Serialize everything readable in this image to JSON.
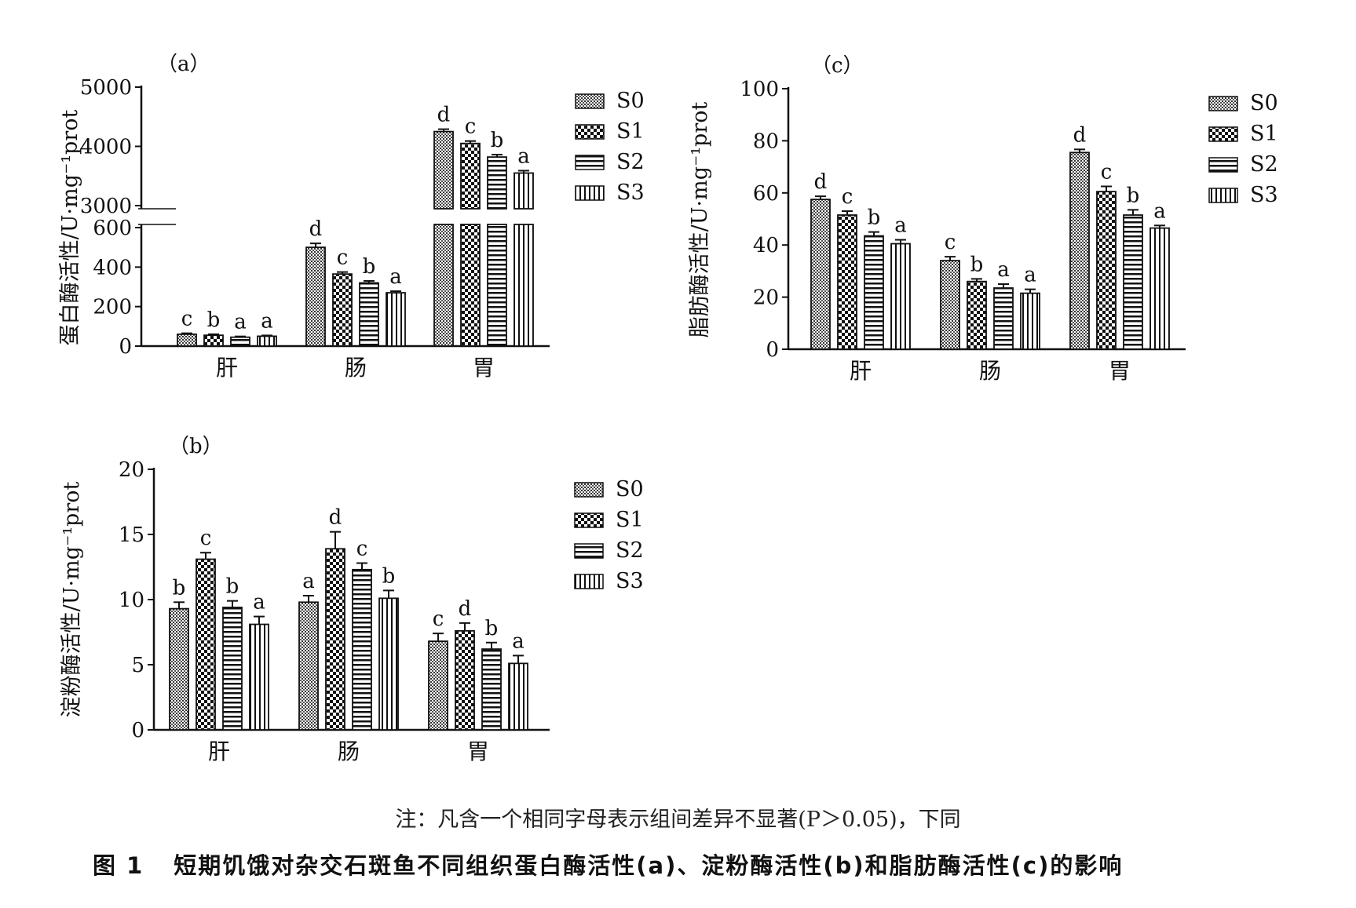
{
  "chart_data": [
    {
      "panel_label": "（a）",
      "type": "bar",
      "ylabel": "蛋白酶活性/U·mg⁻¹prot",
      "categories": [
        "肝",
        "肠",
        "胃"
      ],
      "axis_break": true,
      "ylim_lower": [
        0,
        600
      ],
      "ylim_upper": [
        3000,
        5000
      ],
      "yticks_lower": [
        "0",
        "200",
        "400",
        "600"
      ],
      "yticks_upper": [
        "3000",
        "4000",
        "5000"
      ],
      "series": [
        {
          "name": "S0",
          "values": [
            60,
            500,
            4250
          ],
          "errors": [
            5,
            20,
            40
          ],
          "letters": [
            "c",
            "d",
            "d"
          ]
        },
        {
          "name": "S1",
          "values": [
            55,
            365,
            4050
          ],
          "errors": [
            5,
            10,
            40
          ],
          "letters": [
            "b",
            "c",
            "c"
          ]
        },
        {
          "name": "S2",
          "values": [
            45,
            320,
            3820
          ],
          "errors": [
            4,
            10,
            40
          ],
          "letters": [
            "a",
            "b",
            "b"
          ]
        },
        {
          "name": "S3",
          "values": [
            50,
            270,
            3550
          ],
          "errors": [
            4,
            8,
            40
          ],
          "letters": [
            "a",
            "a",
            "a"
          ]
        }
      ]
    },
    {
      "panel_label": "（b）",
      "type": "bar",
      "ylabel": "淀粉酶活性/U·mg⁻¹prot",
      "categories": [
        "肝",
        "肠",
        "胃"
      ],
      "ylim": [
        0,
        20
      ],
      "yticks": [
        "0",
        "5",
        "10",
        "15",
        "20"
      ],
      "series": [
        {
          "name": "S0",
          "values": [
            9.3,
            9.8,
            6.8
          ],
          "errors": [
            0.5,
            0.5,
            0.6
          ],
          "letters": [
            "b",
            "a",
            "c"
          ]
        },
        {
          "name": "S1",
          "values": [
            13.1,
            13.9,
            7.6
          ],
          "errors": [
            0.5,
            1.3,
            0.6
          ],
          "letters": [
            "c",
            "d",
            "d"
          ]
        },
        {
          "name": "S2",
          "values": [
            9.4,
            12.3,
            6.2
          ],
          "errors": [
            0.5,
            0.5,
            0.5
          ],
          "letters": [
            "b",
            "c",
            "b"
          ]
        },
        {
          "name": "S3",
          "values": [
            8.1,
            10.1,
            5.1
          ],
          "errors": [
            0.6,
            0.6,
            0.6
          ],
          "letters": [
            "a",
            "b",
            "a"
          ]
        }
      ]
    },
    {
      "panel_label": "（c）",
      "type": "bar",
      "ylabel": "脂肪酶活性/U·mg⁻¹prot",
      "categories": [
        "肝",
        "肠",
        "胃"
      ],
      "ylim": [
        0,
        100
      ],
      "yticks": [
        "0",
        "20",
        "40",
        "60",
        "80",
        "100"
      ],
      "series": [
        {
          "name": "S0",
          "values": [
            57.5,
            34,
            75.5
          ],
          "errors": [
            1.2,
            1.5,
            1.2
          ],
          "letters": [
            "d",
            "c",
            "d"
          ]
        },
        {
          "name": "S1",
          "values": [
            51.5,
            26,
            60.5
          ],
          "errors": [
            1.5,
            1,
            2
          ],
          "letters": [
            "c",
            "b",
            "c"
          ]
        },
        {
          "name": "S2",
          "values": [
            43.5,
            23.5,
            51.5
          ],
          "errors": [
            1.5,
            1.5,
            2
          ],
          "letters": [
            "b",
            "a",
            "b"
          ]
        },
        {
          "name": "S3",
          "values": [
            40.5,
            21.5,
            46.5
          ],
          "errors": [
            1.5,
            1.5,
            1
          ],
          "letters": [
            "a",
            "a",
            "a"
          ]
        }
      ]
    }
  ],
  "caption": {
    "note": "注：凡含一个相同字母表示组间差异不显著(P＞0.05)，下同",
    "figure_number": "图 1",
    "title": "短期饥饿对杂交石斑鱼不同组织蛋白酶活性(a)、淀粉酶活性(b)和脂肪酶活性(c)的影响"
  },
  "colors": {
    "bar_stroke": "#111111",
    "background": "#ffffff"
  },
  "patterns": [
    "fine-dots",
    "checker",
    "horizontal-stripes",
    "vertical-stripes"
  ]
}
